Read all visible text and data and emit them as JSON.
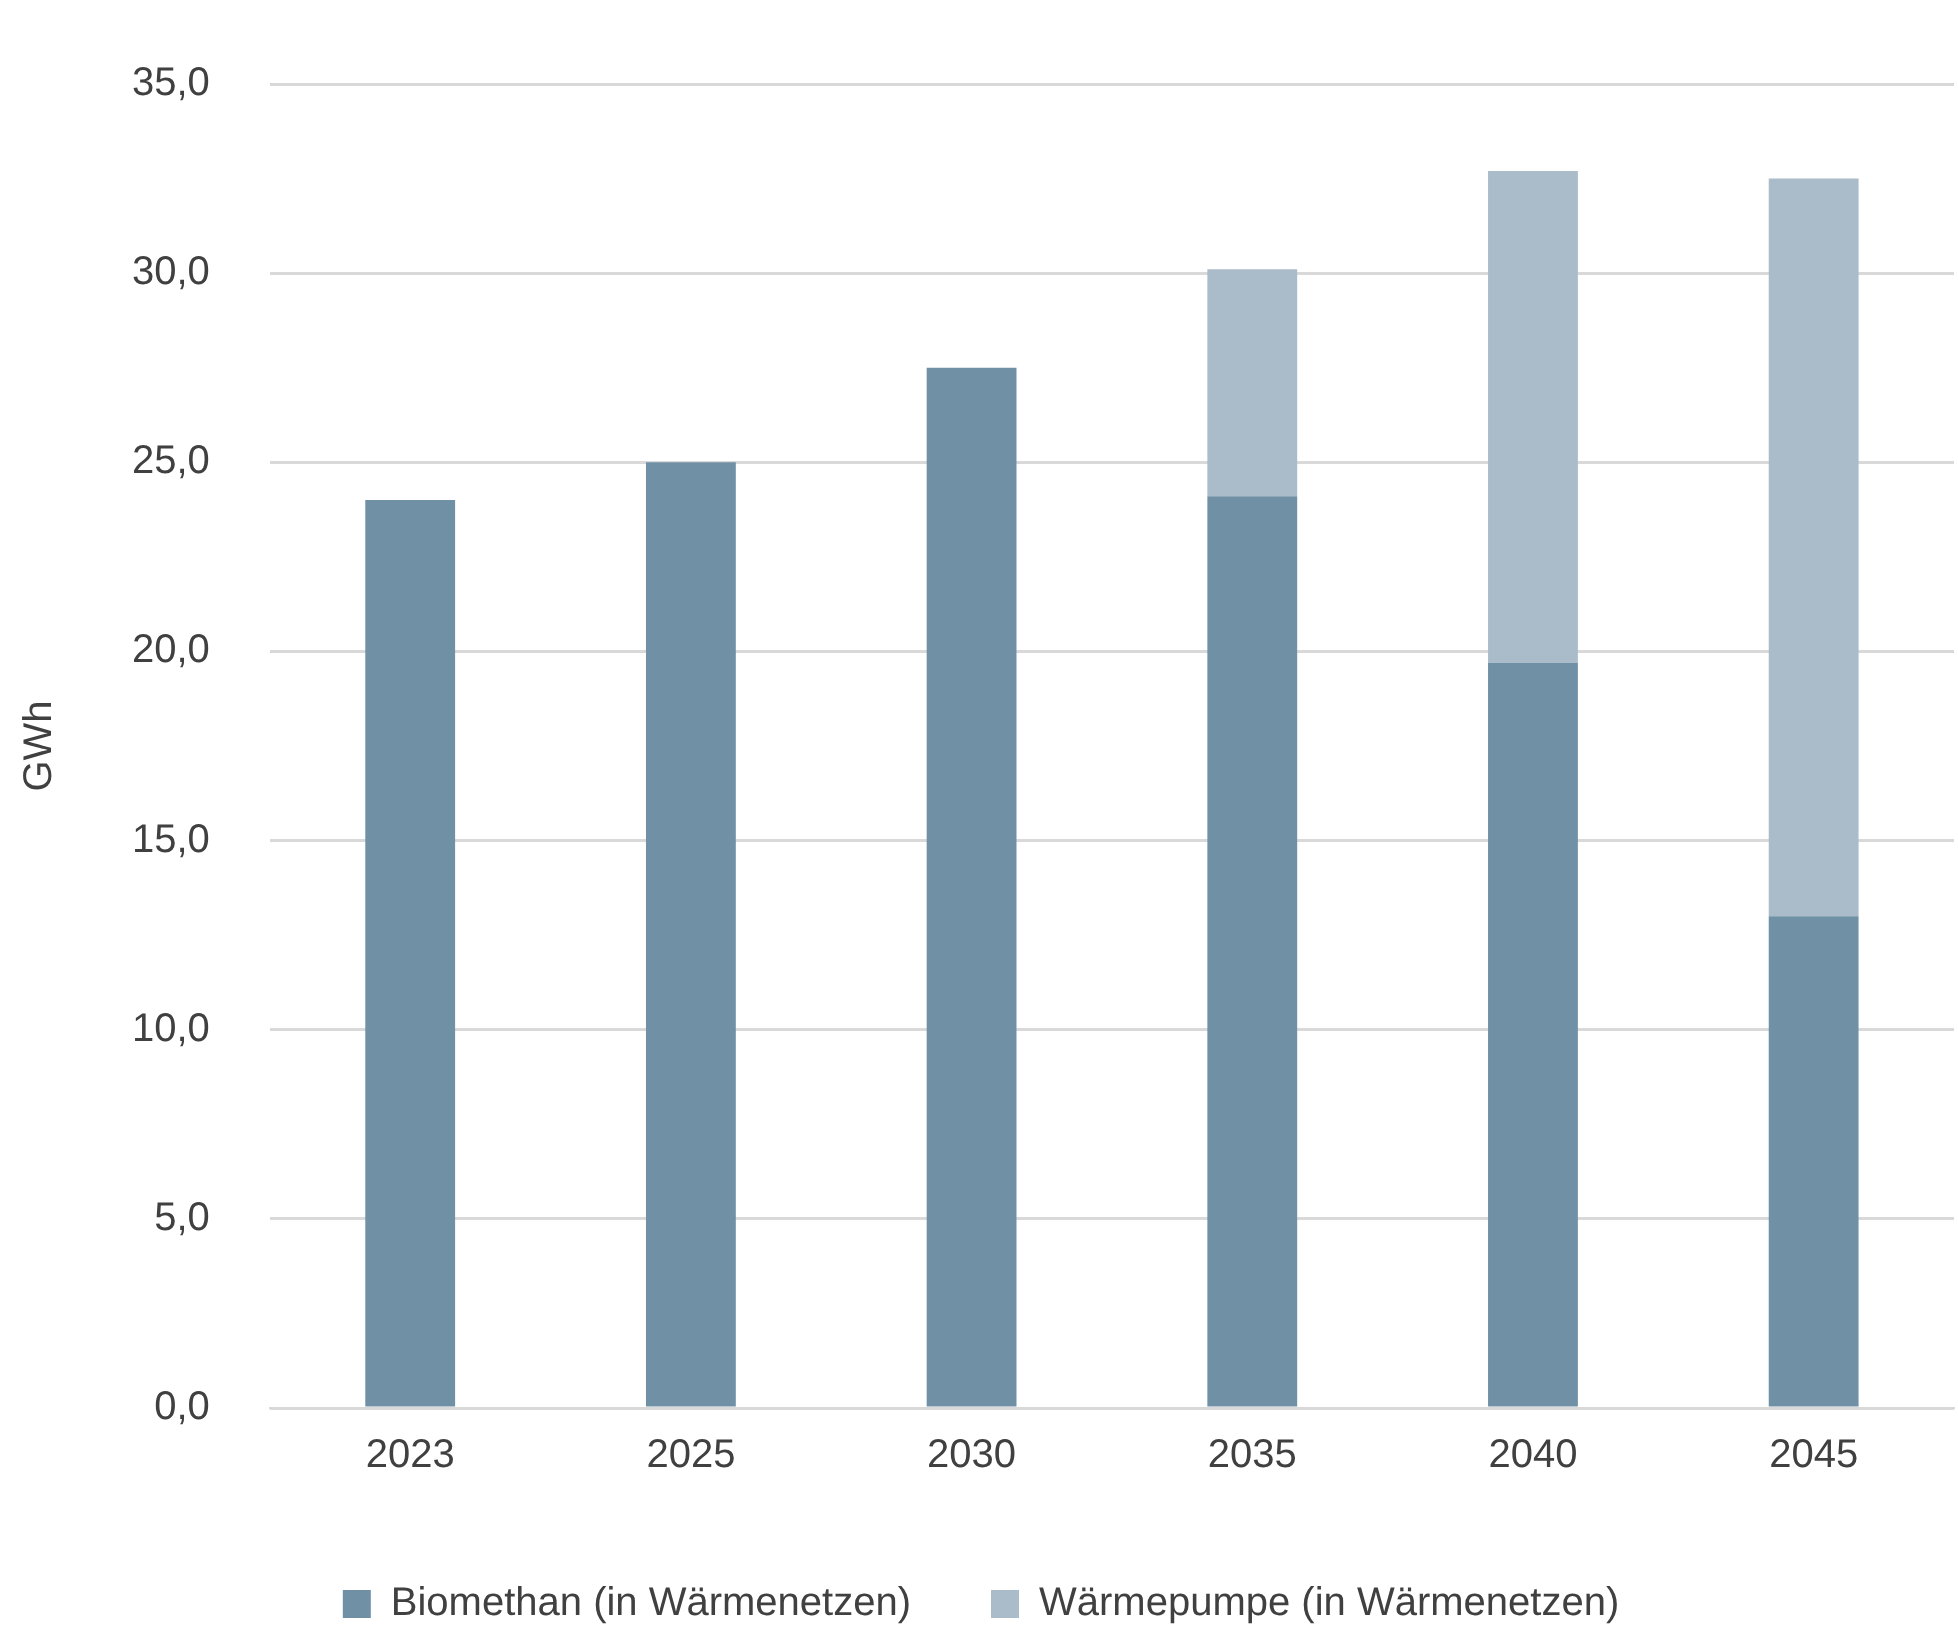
{
  "chart_data": {
    "type": "bar",
    "stacked": true,
    "ylabel": "GWh",
    "categories": [
      "2023",
      "2025",
      "2030",
      "2035",
      "2040",
      "2045"
    ],
    "series": [
      {
        "name": "Biomethan (in Wärmenetzen)",
        "color": "#7090a5",
        "values": [
          24.0,
          25.0,
          27.5,
          24.1,
          19.7,
          13.0
        ]
      },
      {
        "name": "Wärmepumpe (in Wärmenetzen)",
        "color": "#aabbca",
        "values": [
          null,
          null,
          null,
          6.0,
          13.0,
          19.5
        ]
      }
    ],
    "ylim": [
      0,
      35
    ],
    "yticks": [
      {
        "value": 0,
        "label": "0,0"
      },
      {
        "value": 5,
        "label": "5,0"
      },
      {
        "value": 10,
        "label": "10,0"
      },
      {
        "value": 15,
        "label": "15,0"
      },
      {
        "value": 20,
        "label": "20,0"
      },
      {
        "value": 25,
        "label": "25,0"
      },
      {
        "value": 30,
        "label": "30,0"
      },
      {
        "value": 35,
        "label": "35,0"
      }
    ],
    "grid": "y",
    "legend": "bottom"
  }
}
